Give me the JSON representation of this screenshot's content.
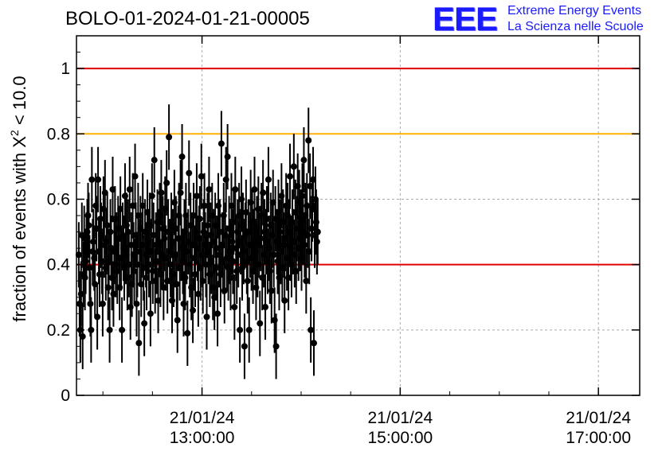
{
  "header": {
    "title": "BOLO-01-2024-01-21-00005"
  },
  "logo": {
    "mark": "EEE",
    "line1": "Extreme Energy Events",
    "line2": "La Scienza nelle Scuole",
    "color": "#1a1aff"
  },
  "chart_data": {
    "type": "scatter",
    "title": "BOLO-01-2024-01-21-00005",
    "ylabel_prefix": "fraction of events with ",
    "ylabel_symbol": "Χ",
    "ylabel_sup": "2",
    "ylabel_suffix": " < 10.0",
    "xlabel": "",
    "xlim": [
      "21/01/24 11:44:00",
      "21/01/24 17:25:00"
    ],
    "ylim": [
      0,
      1.1
    ],
    "yticks": [
      0,
      0.2,
      0.4,
      0.6,
      0.8,
      1
    ],
    "ytick_labels": [
      "0",
      "0.2",
      "0.4",
      "0.6",
      "0.8",
      "1"
    ],
    "xticks": [
      "21/01/24 13:00:00",
      "21/01/24 15:00:00",
      "21/01/24 17:00:00"
    ],
    "xtick_labels": [
      {
        "date": "21/01/24",
        "time": "13:00:00"
      },
      {
        "date": "21/01/24",
        "time": "15:00:00"
      },
      {
        "date": "21/01/24",
        "time": "17:00:00"
      }
    ],
    "grid": true,
    "reference_lines": [
      {
        "y": 1.0,
        "color": "#e00000"
      },
      {
        "y": 0.8,
        "color": "#ffb000"
      },
      {
        "y": 0.4,
        "color": "#e00000"
      }
    ],
    "series": [
      {
        "start_time": "21/01/24 11:44:00",
        "interval_seconds": 28,
        "error": 0.1,
        "color": "#000000",
        "points": [
          0.25,
          0.38,
          0.33,
          0.43,
          0.28,
          0.2,
          0.31,
          0.49,
          0.18,
          0.37,
          0.48,
          0.36,
          0.41,
          0.46,
          0.5,
          0.55,
          0.52,
          0.39,
          0.28,
          0.2,
          0.66,
          0.44,
          0.47,
          0.42,
          0.34,
          0.58,
          0.51,
          0.24,
          0.66,
          0.44,
          0.37,
          0.54,
          0.49,
          0.41,
          0.28,
          0.57,
          0.46,
          0.62,
          0.39,
          0.47,
          0.52,
          0.33,
          0.41,
          0.2,
          0.5,
          0.45,
          0.36,
          0.63,
          0.31,
          0.44,
          0.54,
          0.4,
          0.46,
          0.38,
          0.51,
          0.48,
          0.33,
          0.57,
          0.42,
          0.2,
          0.49,
          0.45,
          0.39,
          0.61,
          0.44,
          0.52,
          0.36,
          0.5,
          0.4,
          0.63,
          0.27,
          0.46,
          0.34,
          0.58,
          0.43,
          0.38,
          0.67,
          0.49,
          0.28,
          0.4,
          0.55,
          0.16,
          0.44,
          0.51,
          0.34,
          0.46,
          0.58,
          0.39,
          0.22,
          0.5,
          0.43,
          0.36,
          0.56,
          0.47,
          0.4,
          0.52,
          0.25,
          0.44,
          0.61,
          0.38,
          0.49,
          0.72,
          0.35,
          0.46,
          0.41,
          0.53,
          0.29,
          0.47,
          0.55,
          0.37,
          0.62,
          0.43,
          0.51,
          0.33,
          0.48,
          0.57,
          0.42,
          0.65,
          0.35,
          0.5,
          0.79,
          0.44,
          0.4,
          0.52,
          0.29,
          0.47,
          0.37,
          0.59,
          0.43,
          0.51,
          0.34,
          0.23,
          0.48,
          0.55,
          0.39,
          0.62,
          0.45,
          0.73,
          0.41,
          0.28,
          0.5,
          0.36,
          0.55,
          0.44,
          0.19,
          0.47,
          0.68,
          0.4,
          0.52,
          0.33,
          0.46,
          0.26,
          0.55,
          0.42,
          0.37,
          0.5,
          0.61,
          0.45,
          0.31,
          0.48,
          0.54,
          0.39,
          0.67,
          0.43,
          0.35,
          0.5,
          0.58,
          0.46,
          0.4,
          0.24,
          0.52,
          0.44,
          0.63,
          0.37,
          0.49,
          0.41,
          0.55,
          0.33,
          0.47,
          0.3,
          0.52,
          0.39,
          0.45,
          0.25,
          0.58,
          0.43,
          0.5,
          0.37,
          0.77,
          0.46,
          0.41,
          0.55,
          0.32,
          0.49,
          0.66,
          0.42,
          0.73,
          0.39,
          0.51,
          0.44,
          0.36,
          0.58,
          0.47,
          0.41,
          0.53,
          0.27,
          0.63,
          0.45,
          0.38,
          0.5,
          0.43,
          0.55,
          0.2,
          0.47,
          0.6,
          0.39,
          0.52,
          0.44,
          0.15,
          0.49,
          0.56,
          0.41,
          0.35,
          0.5,
          0.2,
          0.46,
          0.59,
          0.42,
          0.53,
          0.38,
          0.47,
          0.63,
          0.44,
          0.33,
          0.51,
          0.4,
          0.57,
          0.46,
          0.22,
          0.48,
          0.55,
          0.36,
          0.62,
          0.43,
          0.5,
          0.27,
          0.47,
          0.54,
          0.41,
          0.66,
          0.45,
          0.38,
          0.52,
          0.32,
          0.49,
          0.59,
          0.43,
          0.23,
          0.54,
          0.15,
          0.47,
          0.41,
          0.56,
          0.36,
          0.5,
          0.44,
          0.61,
          0.39,
          0.53,
          0.46,
          0.29,
          0.48,
          0.58,
          0.42,
          0.55,
          0.36,
          0.5,
          0.67,
          0.45,
          0.4,
          0.53,
          0.47,
          0.7,
          0.43,
          0.56,
          0.38,
          0.51,
          0.64,
          0.45,
          0.59,
          0.48,
          0.53,
          0.42,
          0.61,
          0.5,
          0.72,
          0.46,
          0.55,
          0.35,
          0.58,
          0.49,
          0.78,
          0.44,
          0.64,
          0.2,
          0.51,
          0.57,
          0.66,
          0.16,
          0.49,
          0.6,
          0.53,
          0.47,
          0.5
        ]
      }
    ]
  }
}
